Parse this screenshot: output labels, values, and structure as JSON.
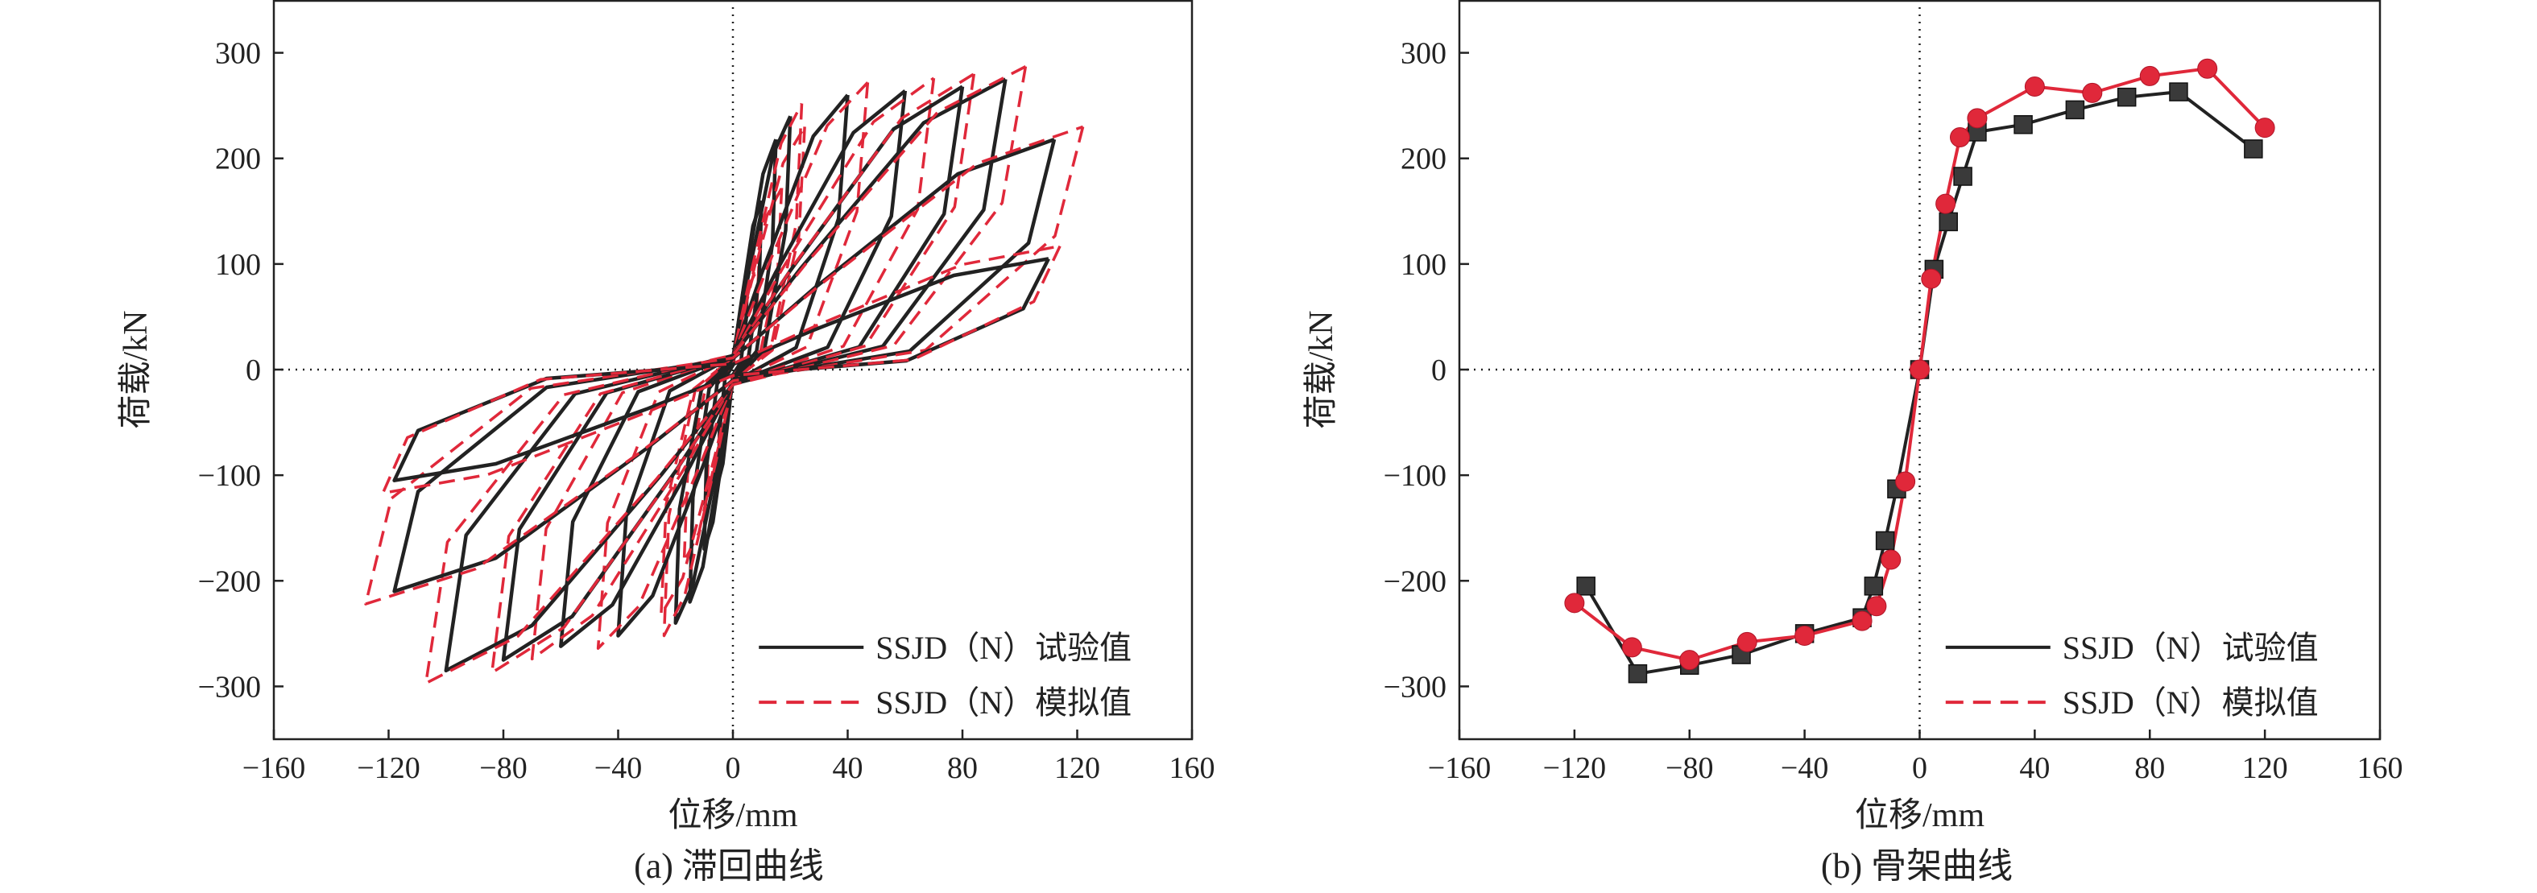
{
  "figure": {
    "caption_a": "(a) 滞回曲线",
    "caption_b": "(b) 骨架曲线"
  },
  "colors": {
    "test": "#222222",
    "sim": "#e0283a",
    "marker_test": "#3a3a3a"
  },
  "chart_data": [
    {
      "type": "line",
      "subtitle": "(a) 滞回曲线",
      "xlabel": "位移/mm",
      "ylabel": "荷载/kN",
      "xlim": [
        -160,
        160
      ],
      "ylim": [
        -350,
        350
      ],
      "xticks": [
        -160,
        -120,
        -80,
        -40,
        0,
        40,
        80,
        120,
        160
      ],
      "yticks": [
        -300,
        -200,
        -100,
        0,
        100,
        200,
        300
      ],
      "grid": false,
      "reference_lines": [
        "x = 0 (dotted)",
        "y = 0 (dotted)"
      ],
      "legend_position": "bottom-right",
      "loop_amplitudes_mm": [
        {
          "pos": 5,
          "neg": -5,
          "pos_load": 86,
          "neg_load": -105
        },
        {
          "pos": 10,
          "neg": -10,
          "pos_load": 160,
          "neg_load": -170
        },
        {
          "pos": 15,
          "neg": -15,
          "pos_load": 218,
          "neg_load": -220
        },
        {
          "pos": 20,
          "neg": -20,
          "pos_load": 240,
          "neg_load": -240
        },
        {
          "pos": 40,
          "neg": -40,
          "pos_load": 260,
          "neg_load": -252
        },
        {
          "pos": 60,
          "neg": -60,
          "pos_load": 264,
          "neg_load": -262
        },
        {
          "pos": 80,
          "neg": -80,
          "pos_load": 268,
          "neg_load": -275
        },
        {
          "pos": 95,
          "neg": -100,
          "pos_load": 275,
          "neg_load": -285
        },
        {
          "pos": 112,
          "neg": -118,
          "pos_load": 218,
          "neg_load": -210
        },
        {
          "pos": 110,
          "neg": -118,
          "pos_load": 105,
          "neg_load": -105
        }
      ],
      "series": [
        {
          "name": "SSJD（N）试验值",
          "style": "solid"
        },
        {
          "name": "SSJD（N）模拟值",
          "style": "dashed"
        }
      ]
    },
    {
      "type": "line",
      "subtitle": "(b) 骨架曲线",
      "xlabel": "位移/mm",
      "ylabel": "荷载/kN",
      "xlim": [
        -160,
        160
      ],
      "ylim": [
        -350,
        350
      ],
      "xticks": [
        -160,
        -120,
        -80,
        -40,
        0,
        40,
        80,
        120,
        160
      ],
      "yticks": [
        -300,
        -200,
        -100,
        0,
        100,
        200,
        300
      ],
      "grid": false,
      "reference_lines": [
        "x = 0 (dotted)",
        "y = 0 (dotted)"
      ],
      "legend_position": "bottom-right",
      "series": [
        {
          "name": "SSJD（N）试验值",
          "style": "solid",
          "marker": "square",
          "x": [
            -116,
            -98,
            -80,
            -62,
            -40,
            -20,
            -16,
            -12,
            -8,
            0,
            5,
            10,
            15,
            20,
            36,
            54,
            72,
            90,
            116
          ],
          "y": [
            -205,
            -288,
            -280,
            -270,
            -250,
            -235,
            -205,
            -162,
            -113,
            0,
            95,
            140,
            183,
            225,
            232,
            246,
            258,
            263,
            209
          ]
        },
        {
          "name": "SSJD（N）模拟值",
          "style": "dashed",
          "marker": "circle",
          "x": [
            -120,
            -100,
            -80,
            -60,
            -40,
            -20,
            -15,
            -10,
            -5,
            0,
            4,
            9,
            14,
            20,
            40,
            60,
            80,
            100,
            120
          ],
          "y": [
            -221,
            -263,
            -275,
            -258,
            -252,
            -238,
            -224,
            -180,
            -106,
            0,
            86,
            157,
            220,
            238,
            268,
            262,
            278,
            285,
            229
          ]
        }
      ]
    }
  ]
}
